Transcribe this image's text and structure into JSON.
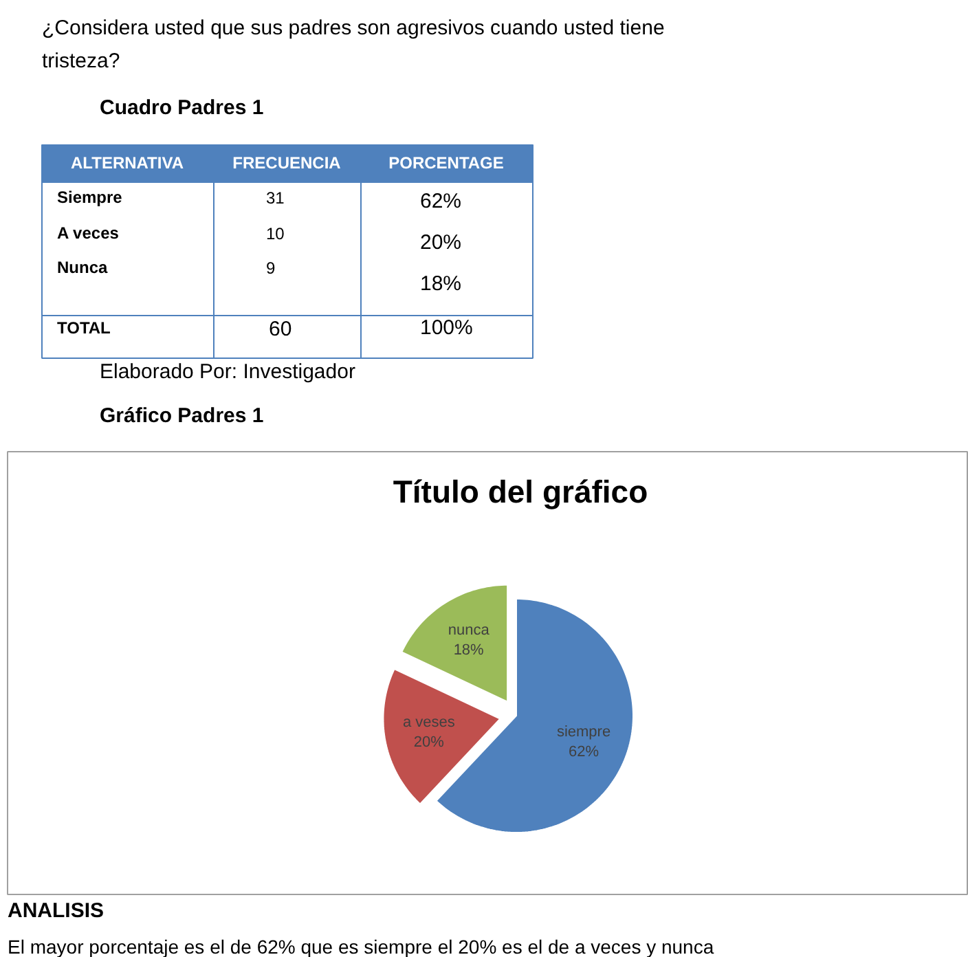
{
  "chart_data": {
    "type": "pie",
    "title": "Título del gráfico",
    "categories": [
      "siempre",
      "a veses",
      "nunca"
    ],
    "values": [
      62,
      20,
      18
    ],
    "value_labels": [
      "62%",
      "20%",
      "18%"
    ],
    "colors": [
      "#4f81bd",
      "#c0504d",
      "#9bbb59"
    ],
    "annotations": [
      "¿Considera usted que sus padres son  agresivos cuando usted tiene tristeza?",
      "Cuadro Padres 1",
      "ALTERNATIVA",
      "FRECUENCIA",
      "PORCENTAGE",
      "Siempre",
      "31",
      "62%",
      "A veces",
      "10",
      "20%",
      "Nunca",
      "9",
      "18%",
      "TOTAL",
      "60",
      "100%",
      "Elaborado Por: Investigador",
      "Gráfico Padres 1",
      "ANALISIS",
      "El mayor porcentaje es el de 62% que es siempre el 20% es el de a veces y  nunca"
    ]
  }
}
